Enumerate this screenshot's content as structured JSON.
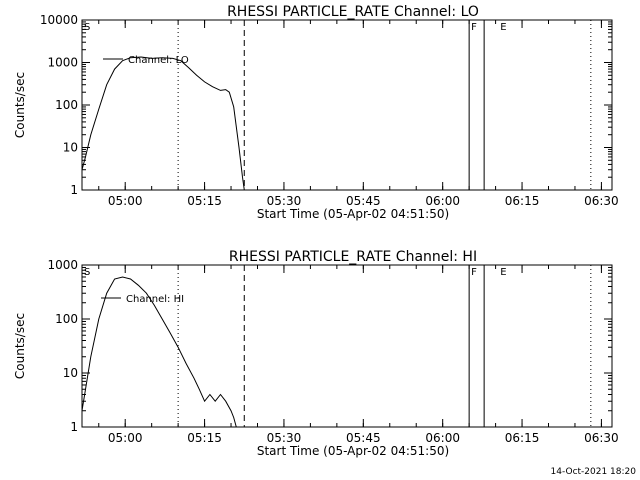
{
  "footer_stamp": "14-Oct-2021 18:20",
  "chart_data": [
    {
      "type": "line",
      "title": "RHESSI PARTICLE_RATE Channel: LO",
      "xlabel": "Start Time (05-Apr-02 04:51:50)",
      "ylabel": "Counts/sec",
      "yscale": "log",
      "ylim": [
        1,
        10000
      ],
      "xlim": [
        "04:51:50",
        "06:32:00"
      ],
      "x_tick_labels": [
        "05:00",
        "05:15",
        "05:30",
        "05:45",
        "06:00",
        "06:15",
        "06:30"
      ],
      "y_tick_labels": [
        "1",
        "10",
        "100",
        "1000",
        "10000"
      ],
      "legend": "top-left",
      "series": [
        {
          "name": "Channel: LO",
          "x": [
            "04:51:50",
            "04:52:30",
            "04:53:30",
            "04:55:00",
            "04:56:30",
            "04:58:00",
            "04:59:30",
            "05:01:00",
            "05:03:00",
            "05:05:00",
            "05:07:00",
            "05:09:00",
            "05:10:30",
            "05:12:00",
            "05:13:30",
            "05:15:00",
            "05:16:30",
            "05:18:00",
            "05:19:00",
            "05:19:40",
            "05:20:30",
            "05:21:30",
            "05:22:10",
            "05:22:30"
          ],
          "values": [
            3,
            6,
            20,
            80,
            300,
            700,
            1100,
            1300,
            1350,
            1250,
            1300,
            1250,
            1100,
            750,
            500,
            350,
            270,
            220,
            230,
            200,
            90,
            10,
            2,
            1
          ]
        }
      ],
      "annotations": [
        {
          "label": "S",
          "time": "04:51:50",
          "style": "dotted"
        },
        {
          "label": "",
          "time": "05:10:00",
          "style": "dotted"
        },
        {
          "label": "",
          "time": "05:22:30",
          "style": "dashed"
        },
        {
          "label": "F",
          "time": "06:05:00",
          "style": "solid"
        },
        {
          "label": "",
          "time": "06:07:50",
          "style": "solid"
        },
        {
          "label": "E",
          "time": "06:10:30",
          "style": "dotted"
        },
        {
          "label": "",
          "time": "06:28:00",
          "style": "dotted"
        }
      ]
    },
    {
      "type": "line",
      "title": "RHESSI PARTICLE_RATE Channel: HI",
      "xlabel": "Start Time (05-Apr-02 04:51:50)",
      "ylabel": "Counts/sec",
      "yscale": "log",
      "ylim": [
        1,
        1000
      ],
      "xlim": [
        "04:51:50",
        "06:32:00"
      ],
      "x_tick_labels": [
        "05:00",
        "05:15",
        "05:30",
        "05:45",
        "06:00",
        "06:15",
        "06:30"
      ],
      "y_tick_labels": [
        "1",
        "10",
        "100",
        "1000"
      ],
      "legend": "top-left",
      "series": [
        {
          "name": "Channel: HI",
          "x": [
            "04:51:50",
            "04:52:30",
            "04:53:30",
            "04:55:00",
            "04:56:30",
            "04:58:00",
            "04:59:30",
            "05:01:00",
            "05:02:30",
            "05:04:00",
            "05:05:30",
            "05:07:00",
            "05:08:30",
            "05:10:00",
            "05:11:30",
            "05:13:00",
            "05:14:00",
            "05:15:00",
            "05:16:00",
            "05:17:00",
            "05:18:00",
            "05:19:00",
            "05:20:00",
            "05:20:30",
            "05:21:00"
          ],
          "values": [
            2,
            5,
            20,
            100,
            300,
            550,
            600,
            550,
            420,
            300,
            180,
            100,
            55,
            30,
            15,
            8,
            5,
            3,
            4,
            3,
            4,
            3,
            2,
            1.5,
            1
          ]
        }
      ],
      "annotations": [
        {
          "label": "S",
          "time": "04:51:50",
          "style": "dotted"
        },
        {
          "label": "",
          "time": "05:10:00",
          "style": "dotted"
        },
        {
          "label": "",
          "time": "05:22:30",
          "style": "dashed"
        },
        {
          "label": "F",
          "time": "06:05:00",
          "style": "solid"
        },
        {
          "label": "",
          "time": "06:07:50",
          "style": "solid"
        },
        {
          "label": "E",
          "time": "06:10:30",
          "style": "dotted"
        },
        {
          "label": "",
          "time": "06:28:00",
          "style": "dotted"
        }
      ]
    }
  ]
}
